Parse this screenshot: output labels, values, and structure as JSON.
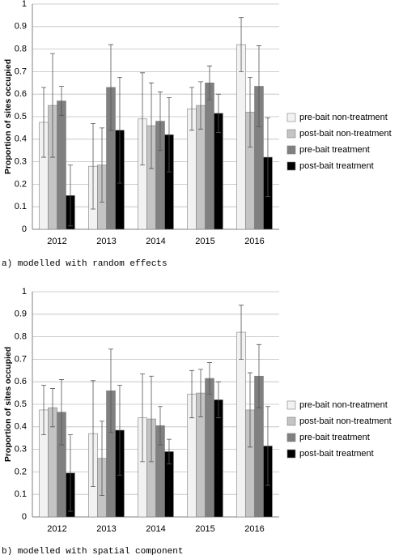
{
  "chart_data": [
    {
      "type": "bar",
      "caption": "a) modelled with random effects",
      "ylabel": "Proportion of sites occupied",
      "categories": [
        "2012",
        "2013",
        "2014",
        "2015",
        "2016"
      ],
      "series": [
        {
          "name": "pre-bait non-treatment",
          "color": "#f2f2f2",
          "values": [
            0.475,
            0.28,
            0.49,
            0.535,
            0.82
          ],
          "errors": [
            0.155,
            0.19,
            0.205,
            0.095,
            0.12
          ]
        },
        {
          "name": "post-bait non-treatment",
          "color": "#c4c4c4",
          "values": [
            0.55,
            0.285,
            0.46,
            0.55,
            0.52
          ],
          "errors": [
            0.23,
            0.165,
            0.19,
            0.105,
            0.155
          ]
        },
        {
          "name": "pre-bait treatment",
          "color": "#808080",
          "values": [
            0.57,
            0.63,
            0.48,
            0.65,
            0.635
          ],
          "errors": [
            0.065,
            0.19,
            0.13,
            0.075,
            0.18
          ]
        },
        {
          "name": "post-bait treatment",
          "color": "#000000",
          "values": [
            0.15,
            0.44,
            0.42,
            0.515,
            0.32
          ],
          "errors": [
            0.135,
            0.235,
            0.165,
            0.085,
            0.175
          ]
        }
      ],
      "ylim": [
        0,
        1
      ],
      "yticks": [
        0,
        0.1,
        0.2,
        0.3,
        0.4,
        0.5,
        0.6,
        0.7,
        0.8,
        0.9,
        1
      ],
      "grid": true,
      "legend": "right"
    },
    {
      "type": "bar",
      "caption": "b) modelled with spatial component",
      "ylabel": "Proportion of sites occupied",
      "categories": [
        "2012",
        "2013",
        "2014",
        "2015",
        "2016"
      ],
      "series": [
        {
          "name": "pre-bait non-treatment",
          "color": "#f2f2f2",
          "values": [
            0.475,
            0.37,
            0.44,
            0.545,
            0.82
          ],
          "errors": [
            0.11,
            0.235,
            0.195,
            0.105,
            0.12
          ]
        },
        {
          "name": "post-bait non-treatment",
          "color": "#c4c4c4",
          "values": [
            0.485,
            0.26,
            0.435,
            0.55,
            0.475
          ],
          "errors": [
            0.085,
            0.165,
            0.19,
            0.105,
            0.165
          ]
        },
        {
          "name": "pre-bait treatment",
          "color": "#808080",
          "values": [
            0.465,
            0.56,
            0.405,
            0.615,
            0.625
          ],
          "errors": [
            0.145,
            0.185,
            0.085,
            0.07,
            0.14
          ]
        },
        {
          "name": "post-bait treatment",
          "color": "#000000",
          "values": [
            0.195,
            0.385,
            0.29,
            0.52,
            0.315
          ],
          "errors": [
            0.17,
            0.2,
            0.055,
            0.08,
            0.175
          ]
        }
      ],
      "ylim": [
        0,
        1
      ],
      "yticks": [
        0,
        0.1,
        0.2,
        0.3,
        0.4,
        0.5,
        0.6,
        0.7,
        0.8,
        0.9,
        1
      ],
      "grid": true,
      "legend": "right"
    }
  ]
}
